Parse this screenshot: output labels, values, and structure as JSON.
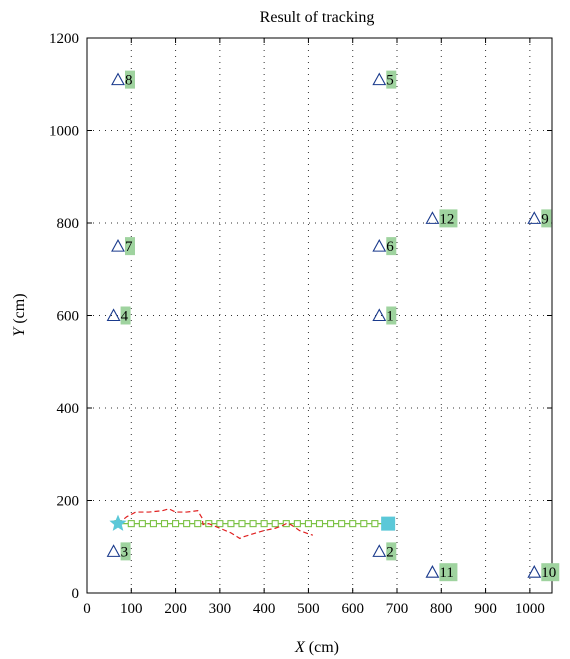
{
  "chart_data": {
    "type": "scatter",
    "title": "Result of tracking",
    "xlabel": {
      "var": "X",
      "unit": " (cm)"
    },
    "ylabel": {
      "var": "Y",
      "unit": " (cm)"
    },
    "xlim": [
      0,
      1050
    ],
    "ylim": [
      0,
      1200
    ],
    "x_ticks": [
      0,
      100,
      200,
      300,
      400,
      500,
      600,
      700,
      800,
      900,
      1000
    ],
    "y_ticks": [
      0,
      200,
      400,
      600,
      800,
      1000,
      1200
    ],
    "grid": true,
    "colors": {
      "anchor": "#1a3a8c",
      "anchor_label_bg": "#9fd39f",
      "true_path": "#7ac143",
      "estimated_path": "#e02020",
      "start": "#5bc8d8",
      "end": "#5bc8d8"
    },
    "anchors": [
      {
        "id": "1",
        "x": 660,
        "y": 600
      },
      {
        "id": "2",
        "x": 660,
        "y": 90
      },
      {
        "id": "3",
        "x": 60,
        "y": 90
      },
      {
        "id": "4",
        "x": 60,
        "y": 600
      },
      {
        "id": "5",
        "x": 660,
        "y": 1110
      },
      {
        "id": "6",
        "x": 660,
        "y": 750
      },
      {
        "id": "7",
        "x": 70,
        "y": 750
      },
      {
        "id": "8",
        "x": 70,
        "y": 1110
      },
      {
        "id": "9",
        "x": 1010,
        "y": 810
      },
      {
        "id": "10",
        "x": 1010,
        "y": 45
      },
      {
        "id": "11",
        "x": 780,
        "y": 45
      },
      {
        "id": "12",
        "x": 780,
        "y": 810
      }
    ],
    "true_path": {
      "x": [
        70,
        100,
        125,
        150,
        175,
        200,
        225,
        250,
        275,
        300,
        325,
        350,
        375,
        400,
        425,
        450,
        475,
        500,
        525,
        550,
        575,
        600,
        625,
        650,
        675
      ],
      "y": [
        150,
        150,
        150,
        150,
        150,
        150,
        150,
        150,
        150,
        150,
        150,
        150,
        150,
        150,
        150,
        150,
        150,
        150,
        150,
        150,
        150,
        150,
        150,
        150,
        150
      ]
    },
    "estimated_path": {
      "x": [
        70,
        90,
        110,
        140,
        170,
        185,
        200,
        225,
        250,
        260,
        262,
        275,
        300,
        325,
        345,
        355,
        375,
        400,
        425,
        440,
        450,
        460,
        480,
        500,
        510
      ],
      "y": [
        150,
        165,
        175,
        175,
        178,
        182,
        175,
        175,
        178,
        162,
        148,
        150,
        140,
        130,
        118,
        122,
        128,
        135,
        140,
        145,
        150,
        148,
        135,
        128,
        125
      ]
    },
    "start": {
      "x": 70,
      "y": 150
    },
    "end": {
      "x": 680,
      "y": 150
    }
  }
}
